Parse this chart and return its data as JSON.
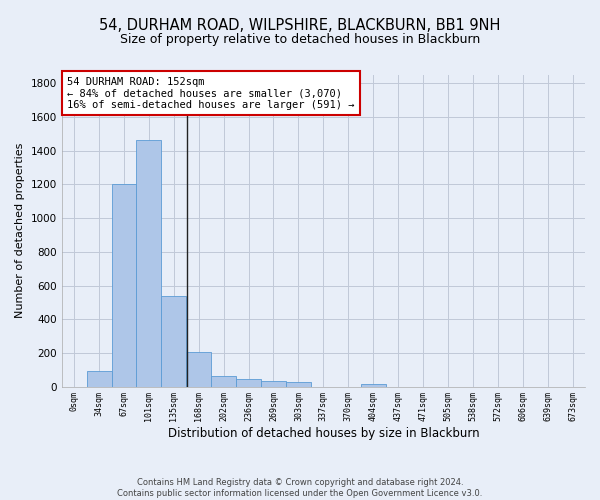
{
  "title": "54, DURHAM ROAD, WILPSHIRE, BLACKBURN, BB1 9NH",
  "subtitle": "Size of property relative to detached houses in Blackburn",
  "xlabel": "Distribution of detached houses by size in Blackburn",
  "ylabel": "Number of detached properties",
  "footer_line1": "Contains HM Land Registry data © Crown copyright and database right 2024.",
  "footer_line2": "Contains public sector information licensed under the Open Government Licence v3.0.",
  "x_labels": [
    "0sqm",
    "34sqm",
    "67sqm",
    "101sqm",
    "135sqm",
    "168sqm",
    "202sqm",
    "236sqm",
    "269sqm",
    "303sqm",
    "337sqm",
    "370sqm",
    "404sqm",
    "437sqm",
    "471sqm",
    "505sqm",
    "538sqm",
    "572sqm",
    "606sqm",
    "639sqm",
    "673sqm"
  ],
  "bar_values": [
    0,
    90,
    1200,
    1465,
    540,
    205,
    65,
    45,
    35,
    28,
    0,
    0,
    15,
    0,
    0,
    0,
    0,
    0,
    0,
    0,
    0
  ],
  "bar_color": "#aec6e8",
  "bar_edge_color": "#5b9bd5",
  "bar_edge_width": 0.6,
  "grid_color": "#c0c8d8",
  "bg_color": "#e8eef8",
  "ylim": [
    0,
    1850
  ],
  "yticks": [
    0,
    200,
    400,
    600,
    800,
    1000,
    1200,
    1400,
    1600,
    1800
  ],
  "vline_x": 4.53,
  "vline_color": "#222222",
  "annotation_text_line1": "54 DURHAM ROAD: 152sqm",
  "annotation_text_line2": "← 84% of detached houses are smaller (3,070)",
  "annotation_text_line3": "16% of semi-detached houses are larger (591) →",
  "annotation_box_color": "#ffffff",
  "annotation_box_edge_color": "#cc0000",
  "title_fontsize": 10.5,
  "subtitle_fontsize": 9,
  "annotation_fontsize": 7.5,
  "ylabel_fontsize": 8,
  "xlabel_fontsize": 8.5,
  "xtick_fontsize": 6,
  "ytick_fontsize": 7.5,
  "footer_fontsize": 6,
  "figsize": [
    6.0,
    5.0
  ],
  "dpi": 100
}
